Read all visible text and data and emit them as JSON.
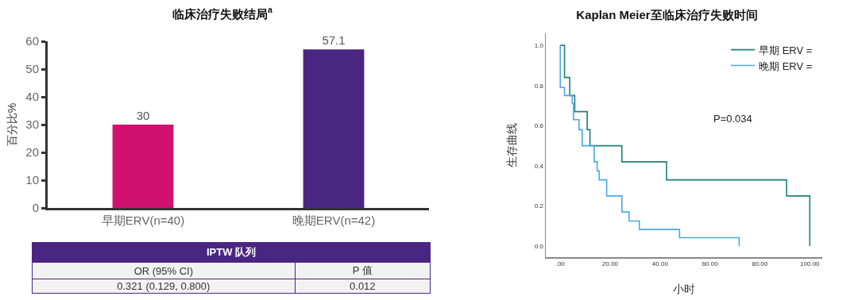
{
  "chart_data": [
    {
      "type": "bar",
      "title": "临床治疗失败结局$^{a}$",
      "ylabel": "百分比%",
      "categories": [
        "早期ERV(n=40)",
        "晚期ERV(n=42)"
      ],
      "values": [
        30,
        57.1
      ],
      "colors": [
        "#d0116f",
        "#4a2683"
      ],
      "ylim": [
        0,
        60
      ],
      "yticks": [
        0,
        10,
        20,
        30,
        40,
        50,
        60
      ],
      "grid": false,
      "data_labels": true,
      "legend": false,
      "annotations": [
        "IPTW 队列",
        "OR (95% CI)",
        "P 值",
        "0.321 (0.129, 0.800)",
        "0.012"
      ]
    },
    {
      "type": "step",
      "title": "Kaplan Meier至临床治疗失败时间",
      "xlabel": "小时",
      "ylabel": "生存曲线",
      "xlim": [
        -5.8,
        105
      ],
      "ylim": [
        -0.055,
        1.06
      ],
      "xticks": [
        {
          "value": 0,
          "label": ".00"
        },
        {
          "value": 20,
          "label": "20.00"
        },
        {
          "value": 40,
          "label": "40.00"
        },
        {
          "value": 60,
          "label": "60.00"
        },
        {
          "value": 80,
          "label": "80.00"
        },
        {
          "value": 100,
          "label": "100.00"
        }
      ],
      "yticks": [
        {
          "value": 0,
          "label": "0.0"
        },
        {
          "value": 0.2,
          "label": "0.2"
        },
        {
          "value": 0.4,
          "label": "0.4"
        },
        {
          "value": 0.6,
          "label": "0.6"
        },
        {
          "value": 0.8,
          "label": "0.8"
        },
        {
          "value": 1,
          "label": "1.0"
        }
      ],
      "series": [
        {
          "name": "早期 ERV =",
          "color": "#1f7f78",
          "x": [
            0,
            1.7,
            3.8,
            5.8,
            10.8,
            11.9,
            24.7,
            42.6,
            90.7,
            100
          ],
          "values": [
            1,
            0.84,
            0.75,
            0.67,
            0.58,
            0.5,
            0.42,
            0.33,
            0.25,
            0
          ]
        },
        {
          "name": "晚期 ERV =",
          "color": "#4aa8e8",
          "x": [
            0,
            0,
            1.7,
            4.8,
            5.3,
            7.5,
            8.8,
            13.6,
            14.8,
            15.6,
            18.6,
            24.7,
            27.6,
            31.7,
            47.8,
            71.7
          ],
          "values": [
            1,
            0.79,
            0.75,
            0.71,
            0.63,
            0.58,
            0.5,
            0.42,
            0.375,
            0.33,
            0.25,
            0.17,
            0.125,
            0.083,
            0.042,
            0
          ]
        }
      ],
      "grid": false,
      "legend": "top right",
      "marker": "none",
      "line_style": "solid",
      "annotations": [
        "P=0.034"
      ]
    }
  ]
}
